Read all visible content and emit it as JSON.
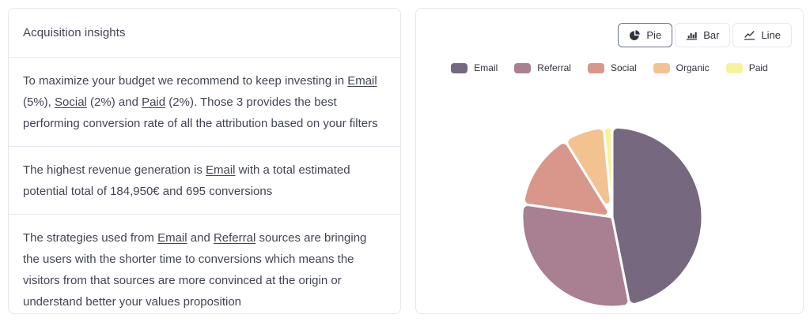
{
  "theme": {
    "background": "#ffffff",
    "card_border": "#e3e8ee",
    "divider": "#e3e8ee",
    "text_primary": "#414552",
    "button_text": "#30313d",
    "button_border": "#e3e8ee",
    "button_border_active": "#687385",
    "pie_gap_color": "#ffffff"
  },
  "left_panel": {
    "title": "Acquisition insights",
    "insights": [
      {
        "segments": [
          {
            "t": "To maximize your budget we recommend to keep investing in "
          },
          {
            "t": "Email",
            "link": true
          },
          {
            "t": " (5%), "
          },
          {
            "t": "Social",
            "link": true
          },
          {
            "t": " (2%) and "
          },
          {
            "t": "Paid",
            "link": true
          },
          {
            "t": " (2%). Those 3 provides the best performing conversion rate of all the attribution based on your filters"
          }
        ]
      },
      {
        "segments": [
          {
            "t": "The highest revenue generation is "
          },
          {
            "t": "Email",
            "link": true
          },
          {
            "t": " with a total estimated potential total of 184,950€ and 695 conversions"
          }
        ]
      },
      {
        "segments": [
          {
            "t": "The strategies used from "
          },
          {
            "t": "Email",
            "link": true
          },
          {
            "t": " and "
          },
          {
            "t": "Referral",
            "link": true
          },
          {
            "t": " sources are bringing the users with the shorter time to conversions which means the visitors from that sources are more convinced at the origin or understand better your values proposition"
          }
        ]
      }
    ]
  },
  "right_panel": {
    "toolbar": {
      "selected": "Pie",
      "buttons": [
        {
          "label": "Pie",
          "icon": "pie-icon",
          "active": true
        },
        {
          "label": "Bar",
          "icon": "bar-icon",
          "active": false
        },
        {
          "label": "Line",
          "icon": "line-icon",
          "active": false
        }
      ]
    }
  },
  "chart_data": {
    "type": "pie",
    "categories": [
      "Email",
      "Referral",
      "Social",
      "Organic",
      "Paid"
    ],
    "values": [
      46.9,
      30.4,
      13.9,
      7.3,
      1.5
    ],
    "values_unit": "percent (estimated from slice angles)",
    "colors": [
      "#75687f",
      "#a97f92",
      "#d9968a",
      "#f2c291",
      "#f7f29b"
    ],
    "legend_position": "top",
    "start_angle_deg": 0,
    "direction": "clockwise"
  }
}
